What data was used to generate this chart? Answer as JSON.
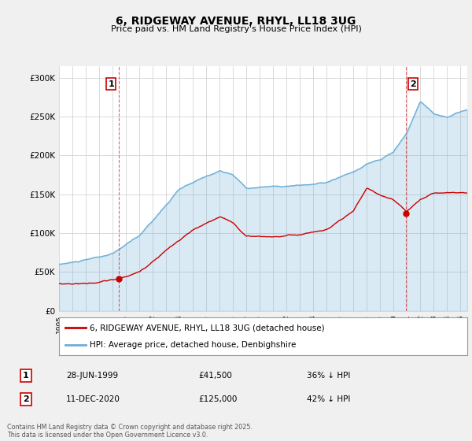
{
  "title": "6, RIDGEWAY AVENUE, RHYL, LL18 3UG",
  "subtitle": "Price paid vs. HM Land Registry's House Price Index (HPI)",
  "ylabel_ticks": [
    "£0",
    "£50K",
    "£100K",
    "£150K",
    "£200K",
    "£250K",
    "£300K"
  ],
  "ytick_values": [
    0,
    50000,
    100000,
    150000,
    200000,
    250000,
    300000
  ],
  "ylim": [
    0,
    315000
  ],
  "xlim_start": 1995.0,
  "xlim_end": 2025.5,
  "hpi_color": "#6baed6",
  "hpi_fill_color": "#d6eaf8",
  "property_color": "#cc0000",
  "marker1_date_x": 1999.49,
  "marker1_price": 41500,
  "marker2_date_x": 2020.94,
  "marker2_price": 125000,
  "legend_line1": "6, RIDGEWAY AVENUE, RHYL, LL18 3UG (detached house)",
  "legend_line2": "HPI: Average price, detached house, Denbighshire",
  "annotation1_date": "28-JUN-1999",
  "annotation1_price": "£41,500",
  "annotation1_hpi": "36% ↓ HPI",
  "annotation2_date": "11-DEC-2020",
  "annotation2_price": "£125,000",
  "annotation2_hpi": "42% ↓ HPI",
  "footer": "Contains HM Land Registry data © Crown copyright and database right 2025.\nThis data is licensed under the Open Government Licence v3.0.",
  "background_color": "#f0f0f0",
  "plot_bg_color": "#ffffff"
}
